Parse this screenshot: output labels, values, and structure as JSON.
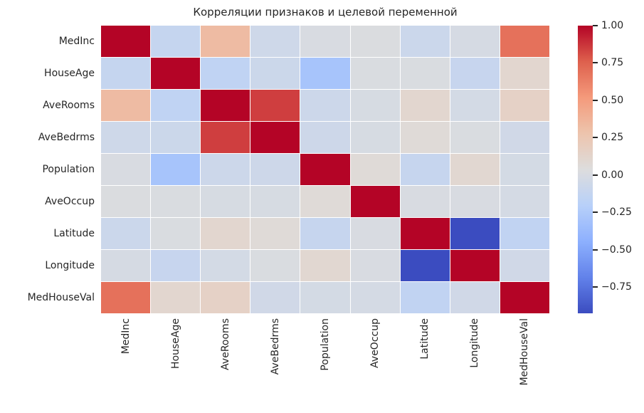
{
  "chart_data": {
    "type": "heatmap",
    "title": "Корреляции признаков и целевой переменной",
    "labels": [
      "MedInc",
      "HouseAge",
      "AveRooms",
      "AveBedrms",
      "Population",
      "AveOccup",
      "Latitude",
      "Longitude",
      "MedHouseVal"
    ],
    "matrix": [
      [
        1.0,
        -0.119,
        0.327,
        -0.062,
        0.005,
        0.019,
        -0.08,
        -0.015,
        0.688
      ],
      [
        -0.119,
        1.0,
        -0.153,
        -0.078,
        -0.296,
        0.013,
        0.011,
        -0.108,
        0.106
      ],
      [
        0.327,
        -0.153,
        1.0,
        0.848,
        -0.072,
        -0.005,
        0.106,
        -0.027,
        0.152
      ],
      [
        -0.062,
        -0.078,
        0.848,
        1.0,
        -0.066,
        -0.006,
        0.07,
        0.013,
        -0.047
      ],
      [
        0.005,
        -0.296,
        -0.072,
        -0.066,
        1.0,
        0.07,
        -0.109,
        0.1,
        -0.025
      ],
      [
        0.019,
        0.013,
        -0.005,
        -0.006,
        0.07,
        1.0,
        0.002,
        0.002,
        -0.024
      ],
      [
        -0.08,
        0.011,
        0.106,
        0.07,
        -0.109,
        0.002,
        1.0,
        -0.925,
        -0.144
      ],
      [
        -0.015,
        -0.108,
        -0.027,
        0.013,
        0.1,
        0.002,
        -0.925,
        1.0,
        -0.046
      ],
      [
        0.688,
        0.106,
        0.152,
        -0.047,
        -0.025,
        -0.024,
        -0.144,
        -0.046,
        1.0
      ]
    ],
    "vmin": -0.925,
    "vmax": 1.0,
    "colormap": "coolwarm",
    "colormap_anchors": [
      [
        0.0,
        "#3B4CC0"
      ],
      [
        0.125,
        "#6282EA"
      ],
      [
        0.25,
        "#8DB0FE"
      ],
      [
        0.375,
        "#B8D0F9"
      ],
      [
        0.5,
        "#DDDDDD"
      ],
      [
        0.625,
        "#EDC4AD"
      ],
      [
        0.75,
        "#F49A7B"
      ],
      [
        0.875,
        "#DE604D"
      ],
      [
        1.0,
        "#B40426"
      ]
    ],
    "colorbar_ticks": [
      {
        "value": 1.0,
        "label": "1.00"
      },
      {
        "value": 0.75,
        "label": "0.75"
      },
      {
        "value": 0.5,
        "label": "0.50"
      },
      {
        "value": 0.25,
        "label": "0.25"
      },
      {
        "value": 0.0,
        "label": "0.00"
      },
      {
        "value": -0.25,
        "label": "−0.25"
      },
      {
        "value": -0.5,
        "label": "−0.50"
      },
      {
        "value": -0.75,
        "label": "−0.75"
      }
    ],
    "grid_line_color": "#ffffff",
    "text_color": "#262626",
    "background": "#ffffff",
    "legend_position": "right-colorbar",
    "grid": false
  }
}
